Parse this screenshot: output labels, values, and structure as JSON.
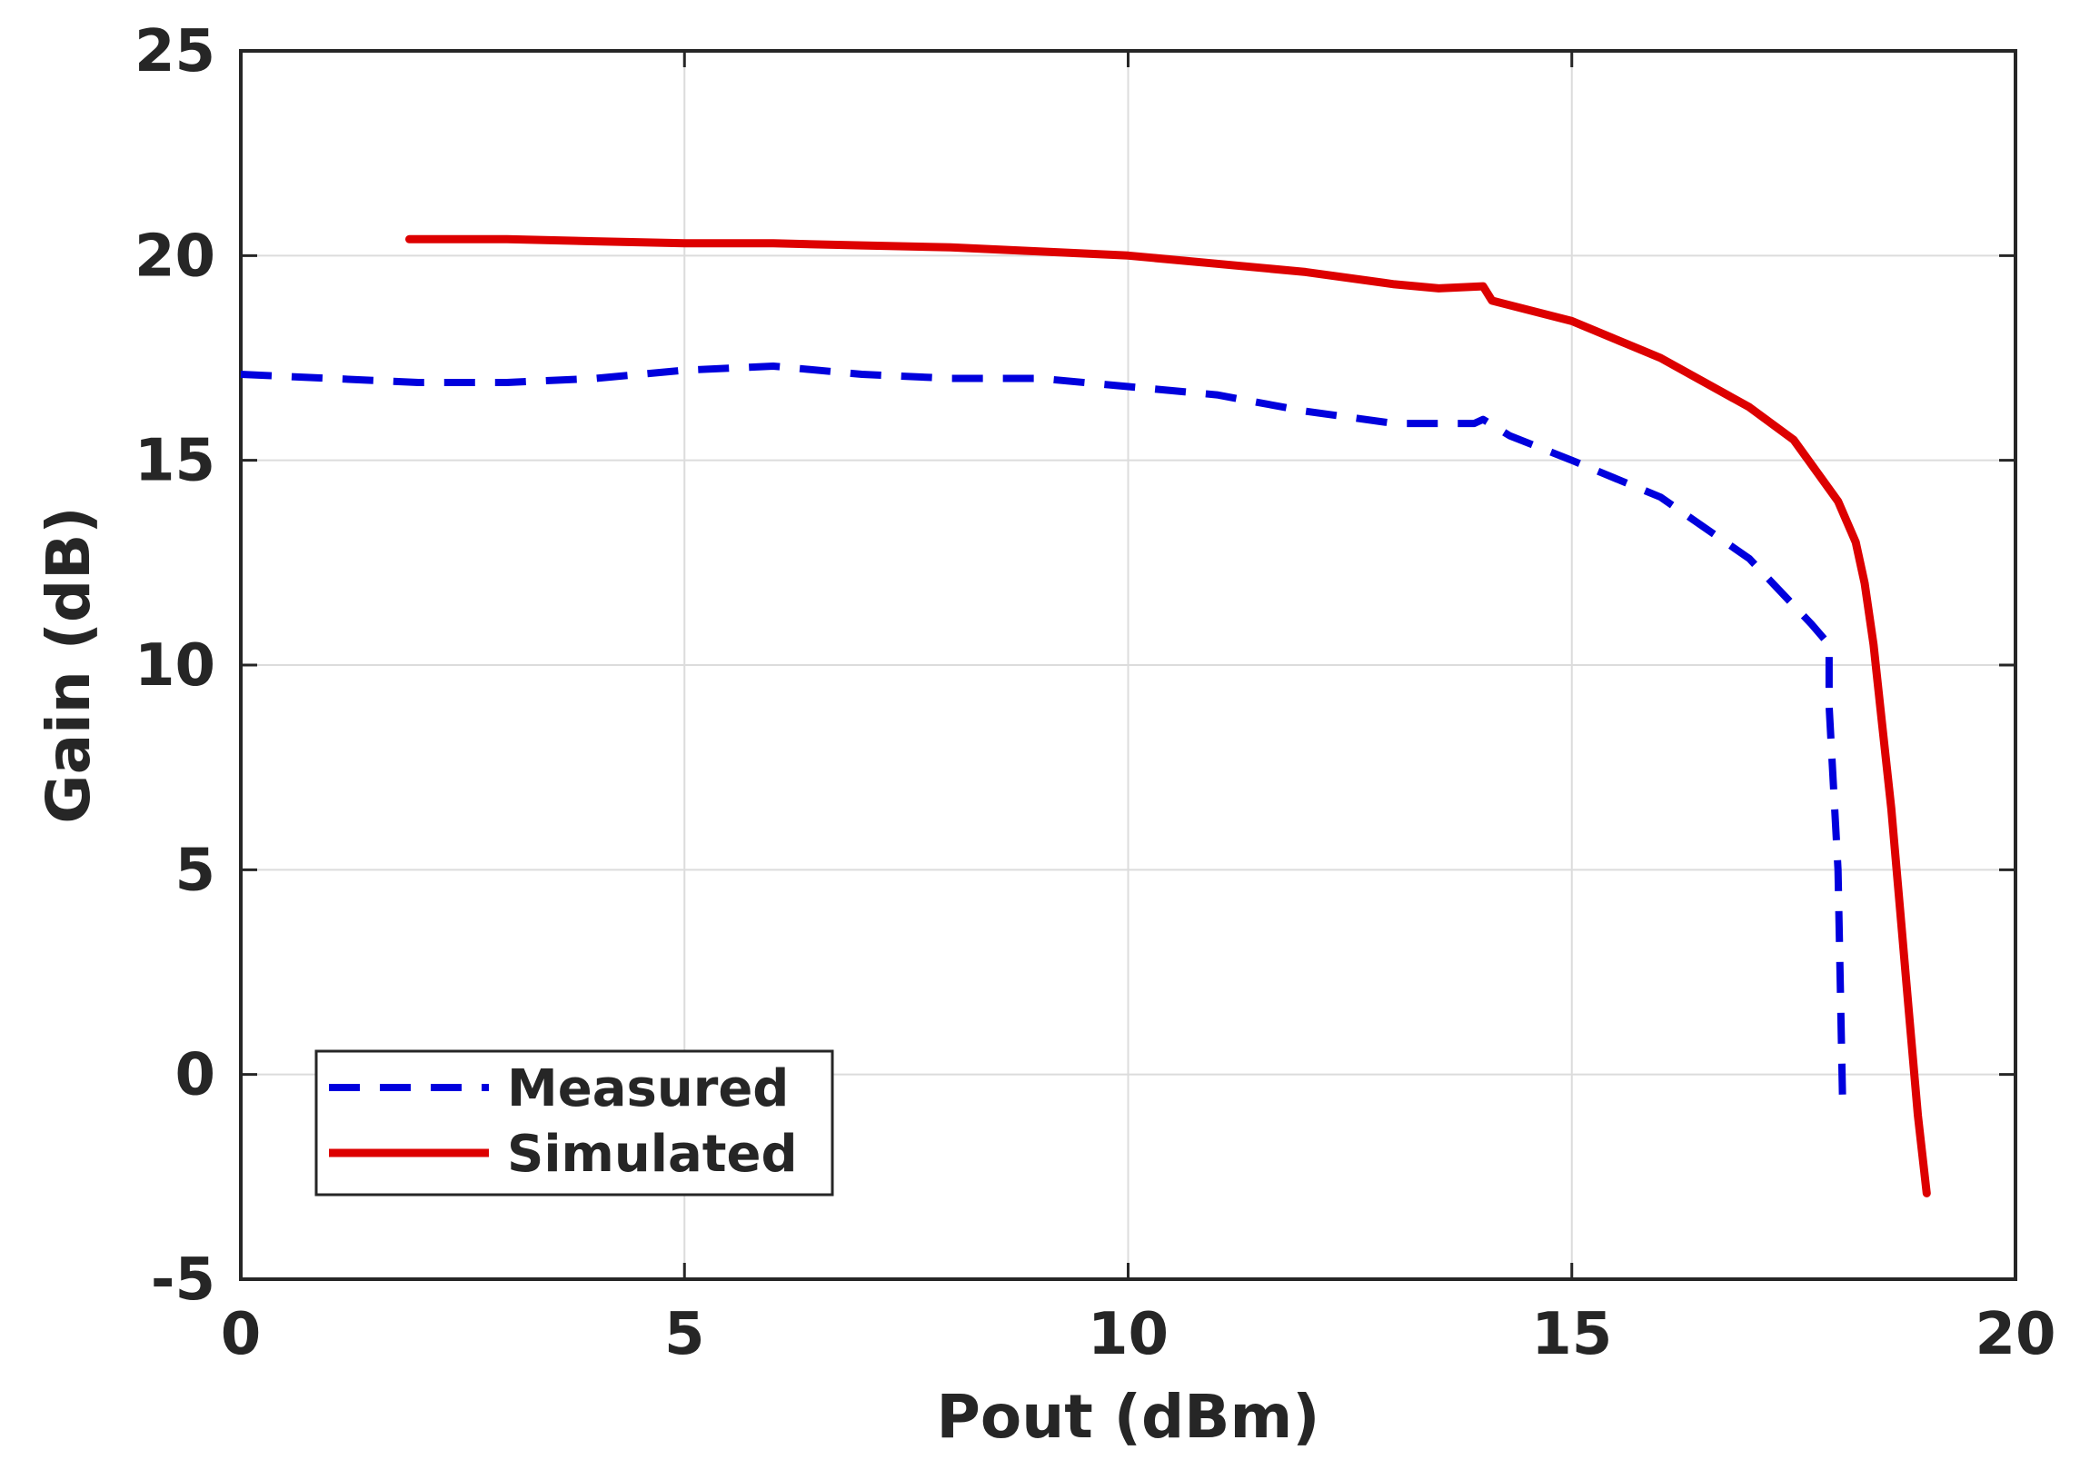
{
  "chart_data": {
    "type": "line",
    "title": "",
    "xlabel": "Pout (dBm)",
    "ylabel": "Gain (dB)",
    "xlim": [
      0,
      20
    ],
    "ylim": [
      -5,
      25
    ],
    "xticks": [
      0,
      5,
      10,
      15,
      20
    ],
    "yticks": [
      -5,
      0,
      5,
      10,
      15,
      20,
      25
    ],
    "xtick_labels": [
      "0",
      "5",
      "10",
      "15",
      "20"
    ],
    "ytick_labels": [
      "-5",
      "0",
      "5",
      "10",
      "15",
      "20",
      "25"
    ],
    "grid": true,
    "legend_position": "bottom-left",
    "series": [
      {
        "name": "Measured",
        "color": "#0000dd",
        "style": "dashed",
        "x": [
          0.0,
          1.0,
          2.0,
          3.0,
          4.0,
          5.0,
          6.0,
          7.0,
          8.0,
          9.0,
          10.0,
          11.0,
          12.0,
          13.0,
          13.9,
          14.0,
          14.3,
          15.0,
          16.0,
          17.0,
          17.7,
          17.9,
          17.9,
          18.0,
          18.05
        ],
        "y": [
          17.1,
          17.0,
          16.9,
          16.9,
          17.0,
          17.2,
          17.3,
          17.1,
          17.0,
          17.0,
          16.8,
          16.6,
          16.2,
          15.9,
          15.9,
          16.0,
          15.6,
          15.0,
          14.1,
          12.6,
          11.0,
          10.5,
          9.0,
          5.0,
          -0.5
        ]
      },
      {
        "name": "Simulated",
        "color": "#dd0000",
        "style": "solid",
        "x": [
          1.9,
          3.0,
          4.0,
          5.0,
          6.0,
          7.0,
          8.0,
          9.0,
          10.0,
          11.0,
          12.0,
          13.0,
          13.5,
          14.0,
          14.1,
          15.0,
          16.0,
          17.0,
          17.5,
          18.0,
          18.2,
          18.3,
          18.4,
          18.5,
          18.6,
          18.7,
          18.8,
          18.9,
          19.0
        ],
        "y": [
          20.4,
          20.4,
          20.35,
          20.3,
          20.3,
          20.25,
          20.2,
          20.1,
          20.0,
          19.8,
          19.6,
          19.3,
          19.2,
          19.25,
          18.9,
          18.4,
          17.5,
          16.3,
          15.5,
          14.0,
          13.0,
          12.0,
          10.5,
          8.5,
          6.5,
          4.0,
          1.5,
          -1.0,
          -2.9
        ]
      }
    ]
  }
}
